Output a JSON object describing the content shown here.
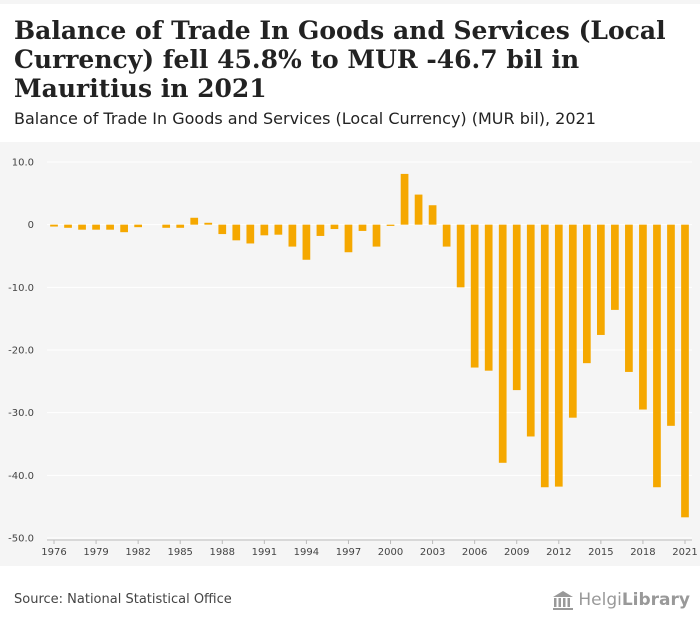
{
  "header": {
    "title": "Balance of Trade In Goods and Services (Local Currency) fell 45.8% to MUR -46.7 bil in Mauritius in 2021",
    "subtitle": "Balance of Trade In Goods and Services (Local Currency) (MUR bil), 2021"
  },
  "footer": {
    "source": "Source: National Statistical Office",
    "logo_text_a": "Helgi",
    "logo_text_b": "Library"
  },
  "colors": {
    "bar": "#f5a800",
    "grid": "#ffffff",
    "axis_line": "#bbbbbb",
    "plot_bg": "#f5f5f5"
  },
  "chart_data": {
    "type": "bar",
    "ylim": [
      -50,
      10
    ],
    "yticks": [
      "10.0",
      "0",
      "-10.0",
      "-20.0",
      "-30.0",
      "-40.0",
      "-50.0"
    ],
    "ytick_values": [
      10,
      0,
      -10,
      -20,
      -30,
      -40,
      -50
    ],
    "xtick_labels": [
      "1976",
      "1979",
      "1982",
      "1985",
      "1988",
      "1991",
      "1994",
      "1997",
      "2000",
      "2003",
      "2006",
      "2009",
      "2012",
      "2015",
      "2018",
      "2021"
    ],
    "grid": true,
    "categories": [
      1976,
      1977,
      1978,
      1979,
      1980,
      1981,
      1982,
      1983,
      1984,
      1985,
      1986,
      1987,
      1988,
      1989,
      1990,
      1991,
      1992,
      1993,
      1994,
      1995,
      1996,
      1997,
      1998,
      1999,
      2000,
      2001,
      2002,
      2003,
      2004,
      2005,
      2006,
      2007,
      2008,
      2009,
      2010,
      2011,
      2012,
      2013,
      2014,
      2015,
      2016,
      2017,
      2018,
      2019,
      2020,
      2021
    ],
    "values": [
      -0.3,
      -0.5,
      -0.8,
      -0.8,
      -0.8,
      -1.2,
      -0.4,
      0,
      -0.5,
      -0.5,
      1.1,
      0.3,
      -1.5,
      -2.5,
      -3,
      -1.7,
      -1.6,
      -3.5,
      -5.6,
      -1.8,
      -0.7,
      -4.4,
      -1,
      -3.5,
      -0.2,
      8.1,
      4.8,
      3.1,
      -3.5,
      -10,
      -22.8,
      -23.3,
      -38,
      -26.4,
      -33.8,
      -41.9,
      -41.8,
      -30.8,
      -22.1,
      -17.6,
      -13.6,
      -23.5,
      -29.5,
      -41.9,
      -32.1,
      -46.7
    ]
  }
}
